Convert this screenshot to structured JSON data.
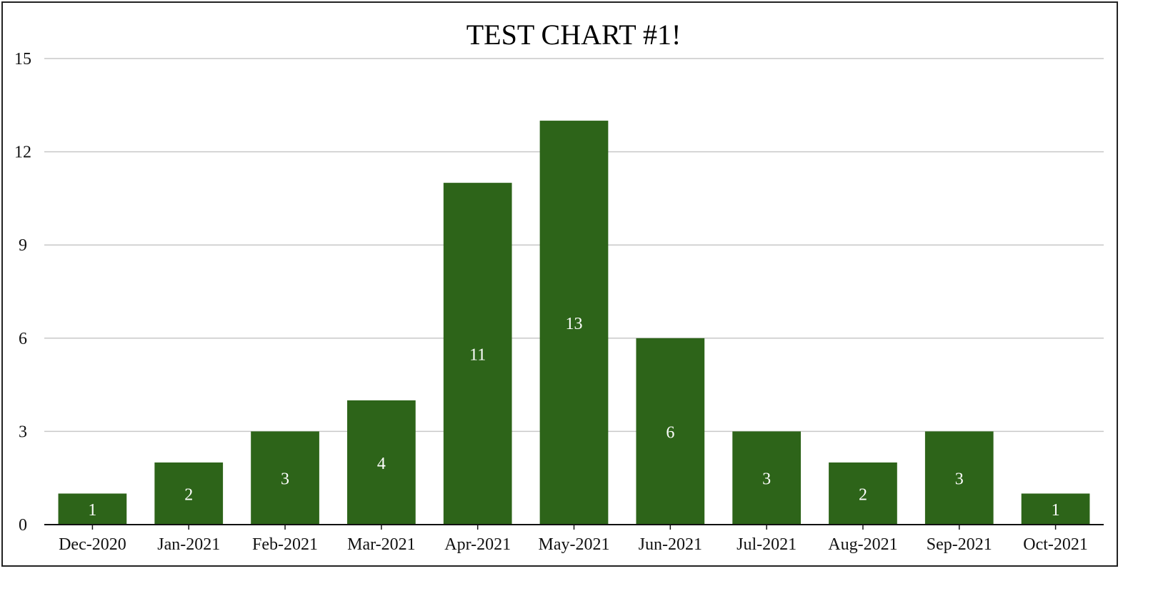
{
  "chart_data": {
    "type": "bar",
    "title": "TEST CHART #1!",
    "xlabel": "",
    "ylabel": "",
    "categories": [
      "Dec-2020",
      "Jan-2021",
      "Feb-2021",
      "Mar-2021",
      "Apr-2021",
      "May-2021",
      "Jun-2021",
      "Jul-2021",
      "Aug-2021",
      "Sep-2021",
      "Oct-2021"
    ],
    "values": [
      1,
      2,
      3,
      4,
      11,
      13,
      6,
      3,
      2,
      3,
      1
    ],
    "ylim": [
      0,
      15
    ],
    "yticks": [
      0,
      3,
      6,
      9,
      12,
      15
    ],
    "grid": true,
    "legend": "none",
    "bar_color": "#2d6419",
    "grid_color": "#c8c8c8",
    "data_label_color": "#ffffff"
  }
}
